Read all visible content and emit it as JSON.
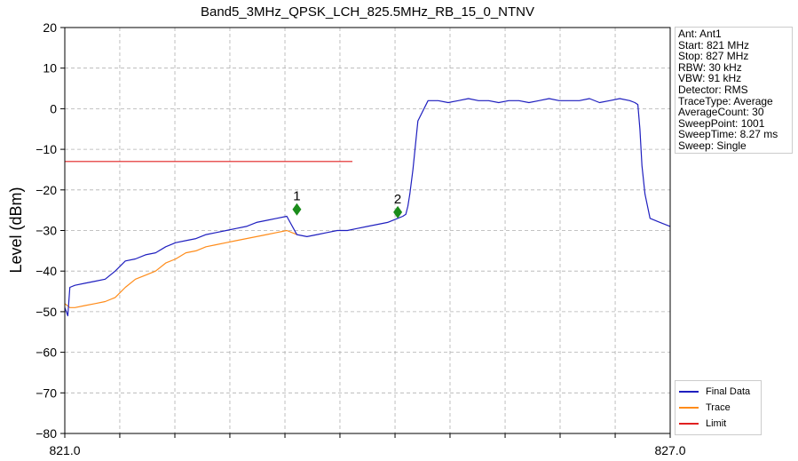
{
  "chart_data": {
    "type": "line",
    "title": "Band5_3MHz_QPSK_LCH_825.5MHz_RB_15_0_NTNV",
    "xlabel": "",
    "ylabel": "Level (dBm)",
    "xlim": [
      821.0,
      827.0
    ],
    "ylim": [
      -80,
      20
    ],
    "x_tick_labels": [
      "821.0",
      "827.0"
    ],
    "x_minor_ticks": [
      821.545,
      822.091,
      822.636,
      823.182,
      823.727,
      824.273,
      824.818,
      825.364,
      825.909,
      826.455
    ],
    "y_ticks": [
      20,
      10,
      0,
      -10,
      -20,
      -30,
      -40,
      -50,
      -60,
      -70,
      -80
    ],
    "y_tick_labels": [
      "20",
      "10",
      "0",
      "−10",
      "−20",
      "−30",
      "−40",
      "−50",
      "−60",
      "−70",
      "−80"
    ],
    "grid": true,
    "legend_position": "bottom-right, outside plot",
    "series": [
      {
        "name": "Final Data",
        "color": "#1f1fbf",
        "x": [
          821.0,
          821.03,
          821.05,
          821.1,
          821.2,
          821.3,
          821.4,
          821.5,
          821.6,
          821.7,
          821.8,
          821.9,
          822.0,
          822.1,
          822.2,
          822.3,
          822.4,
          822.5,
          822.6,
          822.7,
          822.8,
          822.9,
          823.0,
          823.1,
          823.2,
          823.3,
          823.4,
          823.5,
          823.6,
          823.7,
          823.8,
          823.9,
          824.0,
          824.1,
          824.2,
          824.3,
          824.35,
          824.38,
          824.4,
          824.42,
          824.45,
          824.5,
          824.6,
          824.7,
          824.8,
          824.9,
          825.0,
          825.1,
          825.2,
          825.3,
          825.4,
          825.5,
          825.6,
          825.7,
          825.8,
          825.9,
          826.0,
          826.1,
          826.2,
          826.3,
          826.4,
          826.5,
          826.6,
          826.65,
          826.68,
          826.7,
          826.72,
          826.75,
          826.8,
          826.9,
          827.0
        ],
        "values": [
          -49,
          -51,
          -44,
          -43.5,
          -43,
          -42.5,
          -42,
          -40,
          -37.5,
          -37,
          -36,
          -35.5,
          -34,
          -33,
          -32.5,
          -32,
          -31,
          -30.5,
          -30,
          -29.5,
          -29,
          -28,
          -27.5,
          -27,
          -26.5,
          -31,
          -31.5,
          -31,
          -30.5,
          -30,
          -30,
          -29.5,
          -29,
          -28.5,
          -28,
          -27,
          -26.5,
          -26,
          -24,
          -21,
          -15,
          -3,
          2,
          2,
          1.5,
          2,
          2.5,
          2,
          2,
          1.5,
          2,
          2,
          1.5,
          2,
          2.5,
          2,
          2,
          2,
          2.5,
          1.5,
          2,
          2.5,
          2,
          1.5,
          1,
          -5,
          -14,
          -21,
          -27,
          -28,
          -29
        ]
      },
      {
        "name": "Trace",
        "color": "#ff8c1a",
        "x": [
          821.0,
          821.05,
          821.1,
          821.2,
          821.3,
          821.4,
          821.5,
          821.6,
          821.7,
          821.8,
          821.9,
          822.0,
          822.1,
          822.2,
          822.3,
          822.4,
          822.5,
          822.6,
          822.7,
          822.8,
          822.9,
          823.0,
          823.1,
          823.2,
          823.3
        ],
        "values": [
          -48,
          -49,
          -49,
          -48.5,
          -48,
          -47.5,
          -46.5,
          -44,
          -42,
          -41,
          -40,
          -38,
          -37,
          -35.5,
          -35,
          -34,
          -33.5,
          -33,
          -32.5,
          -32,
          -31.5,
          -31,
          -30.5,
          -30,
          -31
        ]
      },
      {
        "name": "Limit",
        "color": "#e02020",
        "x": [
          821.0,
          823.85
        ],
        "values": [
          -13,
          -13
        ]
      }
    ],
    "markers": [
      {
        "label": "1",
        "x": 823.3,
        "y": -24.8
      },
      {
        "label": "2",
        "x": 824.3,
        "y": -25.5
      }
    ]
  },
  "info": {
    "lines": [
      "Ant: Ant1",
      "Start: 821 MHz",
      "Stop: 827 MHz",
      "RBW: 30 kHz",
      "VBW: 91 kHz",
      "Detector: RMS",
      "TraceType: Average",
      "AverageCount: 30",
      "SweepPoint: 1001",
      "SweepTime: 8.27 ms",
      "Sweep: Single"
    ]
  },
  "colors": {
    "marker": "#1a8c1a",
    "grid": "#b0b0b0"
  }
}
